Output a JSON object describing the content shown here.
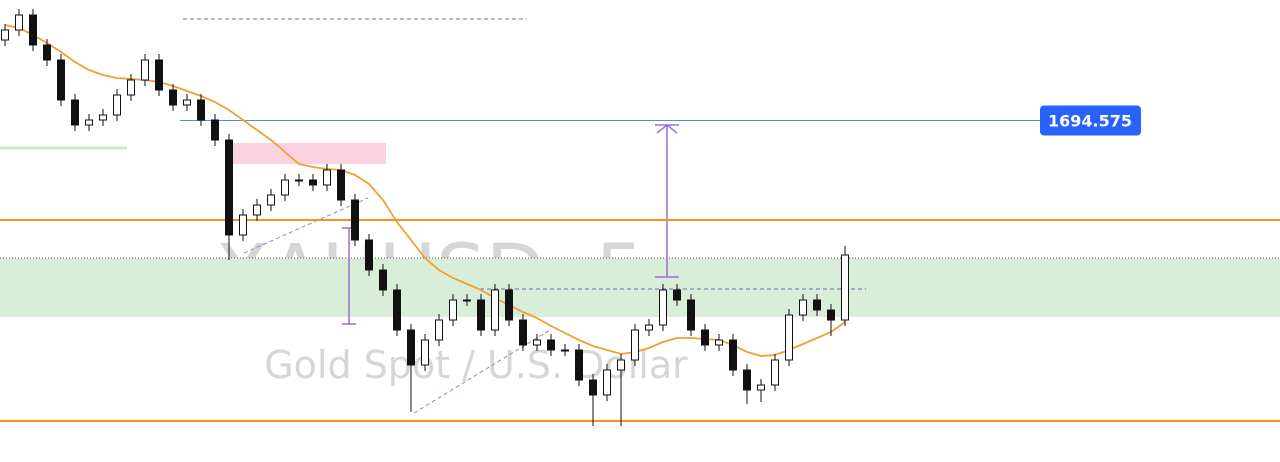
{
  "chart_data": {
    "type": "candlestick",
    "symbol": "XAUUSD, 5",
    "description": "Gold Spot / U.S. Dollar",
    "ylim": [
      1677.5,
      1700.6
    ],
    "open": [
      1698.6,
      1699.1,
      1699.85,
      1698.35,
      1697.6,
      1695.6,
      1694.35,
      1694.6,
      1694.85,
      1695.85,
      1696.6,
      1697.6,
      1696.1,
      1695.35,
      1695.6,
      1694.6,
      1693.6,
      1688.85,
      1689.85,
      1690.35,
      1690.85,
      1691.6,
      1691.6,
      1691.35,
      1692.1,
      1690.6,
      1688.6,
      1687.1,
      1686.1,
      1684.1,
      1682.35,
      1683.6,
      1684.6,
      1685.6,
      1685.6,
      1684.1,
      1686.1,
      1684.6,
      1683.35,
      1683.6,
      1683.1,
      1683.1,
      1681.6,
      1680.85,
      1682.1,
      1682.6,
      1684.1,
      1684.35,
      1686.1,
      1685.6,
      1684.1,
      1683.35,
      1683.6,
      1682.1,
      1681.1,
      1681.35,
      1682.6,
      1684.85,
      1685.6,
      1685.1,
      1684.6
    ],
    "high": [
      1699.4,
      1700.15,
      1700.15,
      1698.65,
      1697.9,
      1695.9,
      1694.9,
      1695.15,
      1696.15,
      1696.9,
      1697.9,
      1697.9,
      1696.4,
      1695.9,
      1695.9,
      1694.9,
      1693.9,
      1690.15,
      1690.65,
      1691.15,
      1691.9,
      1691.9,
      1691.9,
      1692.4,
      1692.4,
      1690.9,
      1688.9,
      1687.4,
      1686.4,
      1684.4,
      1683.9,
      1684.9,
      1685.9,
      1685.9,
      1685.9,
      1686.4,
      1686.4,
      1684.9,
      1683.9,
      1683.9,
      1683.4,
      1683.4,
      1681.9,
      1682.4,
      1682.9,
      1684.4,
      1684.65,
      1686.4,
      1686.4,
      1685.9,
      1684.4,
      1683.9,
      1683.9,
      1682.4,
      1681.65,
      1682.9,
      1685.15,
      1685.9,
      1685.9,
      1685.4,
      1688.3
    ],
    "low": [
      1698.3,
      1698.8,
      1698.05,
      1697.3,
      1695.3,
      1694.05,
      1694.05,
      1694.3,
      1694.55,
      1695.55,
      1696.3,
      1695.8,
      1695.05,
      1695.05,
      1694.3,
      1693.3,
      1687.6,
      1688.55,
      1689.55,
      1690.05,
      1690.55,
      1691.3,
      1691.05,
      1691.05,
      1690.3,
      1688.3,
      1686.8,
      1685.8,
      1683.8,
      1680.0,
      1682.05,
      1683.3,
      1684.3,
      1685.3,
      1683.8,
      1683.8,
      1684.3,
      1683.05,
      1683.05,
      1682.8,
      1682.8,
      1681.3,
      1679.3,
      1680.55,
      1679.3,
      1682.3,
      1683.8,
      1684.05,
      1685.3,
      1683.8,
      1683.05,
      1683.05,
      1681.8,
      1680.4,
      1680.5,
      1681.05,
      1682.3,
      1684.55,
      1684.8,
      1683.8,
      1684.3
    ],
    "close": [
      1699.1,
      1699.85,
      1698.35,
      1697.6,
      1695.6,
      1694.35,
      1694.6,
      1694.85,
      1695.85,
      1696.6,
      1697.6,
      1696.1,
      1695.35,
      1695.6,
      1694.6,
      1693.6,
      1688.85,
      1689.85,
      1690.35,
      1690.85,
      1691.6,
      1691.6,
      1691.35,
      1692.1,
      1690.6,
      1688.6,
      1687.1,
      1686.1,
      1684.1,
      1682.35,
      1683.6,
      1684.6,
      1685.6,
      1685.6,
      1684.1,
      1686.1,
      1684.6,
      1683.35,
      1683.6,
      1683.1,
      1683.1,
      1681.6,
      1680.85,
      1682.1,
      1682.6,
      1684.1,
      1684.35,
      1686.1,
      1685.6,
      1684.1,
      1683.35,
      1683.6,
      1682.1,
      1681.1,
      1681.35,
      1682.6,
      1684.85,
      1685.6,
      1685.1,
      1684.6,
      1687.85
    ],
    "moving_average": {
      "color": "#f0a030",
      "values": [
        1699.35,
        1699.2,
        1698.85,
        1698.45,
        1698.0,
        1697.5,
        1697.1,
        1696.85,
        1696.7,
        1696.65,
        1696.6,
        1696.5,
        1696.3,
        1696.05,
        1695.8,
        1695.5,
        1695.1,
        1694.6,
        1694.1,
        1693.6,
        1693.0,
        1692.4,
        1692.25,
        1692.15,
        1692.1,
        1691.85,
        1691.4,
        1690.6,
        1689.5,
        1688.6,
        1687.7,
        1687.1,
        1686.7,
        1686.4,
        1686.1,
        1685.7,
        1685.35,
        1685.0,
        1684.7,
        1684.3,
        1683.95,
        1683.6,
        1683.3,
        1683.1,
        1682.9,
        1683.0,
        1683.2,
        1683.5,
        1683.7,
        1683.7,
        1683.65,
        1683.6,
        1683.35,
        1683.0,
        1682.8,
        1682.85,
        1683.1,
        1683.4,
        1683.7,
        1684.0,
        1684.5
      ]
    },
    "zones": [
      {
        "top": 1687.7,
        "bottom": 1684.75,
        "color": "#d8eed9"
      },
      {
        "top": 1693.45,
        "bottom": 1692.4,
        "color": "#fbd3e0"
      }
    ],
    "levels": [
      {
        "value": 1689.6,
        "color": "#f7931a"
      },
      {
        "value": 1679.55,
        "color": "#f7931a"
      }
    ],
    "price_line": {
      "value": 1694.575,
      "color": "#2962ff"
    }
  }
}
